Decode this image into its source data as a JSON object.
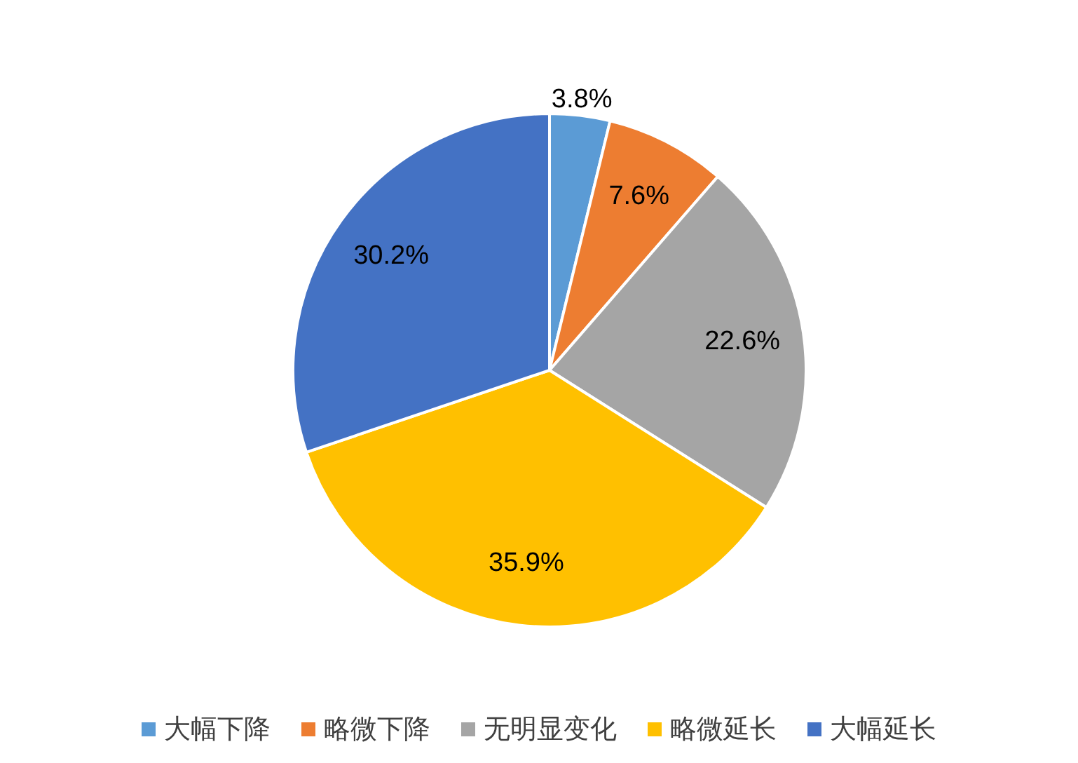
{
  "chart_data": {
    "type": "pie",
    "categories": [
      "大幅下降",
      "略微下降",
      "无明显变化",
      "略微延长",
      "大幅延长"
    ],
    "values": [
      3.8,
      7.6,
      22.6,
      35.9,
      30.2
    ],
    "colors": [
      "#5b9bd5",
      "#ed7d31",
      "#a5a5a5",
      "#ffc000",
      "#4472c4"
    ],
    "value_labels": [
      "3.8%",
      "7.6%",
      "22.6%",
      "35.9%",
      "30.2%"
    ],
    "legend": "bottom"
  }
}
